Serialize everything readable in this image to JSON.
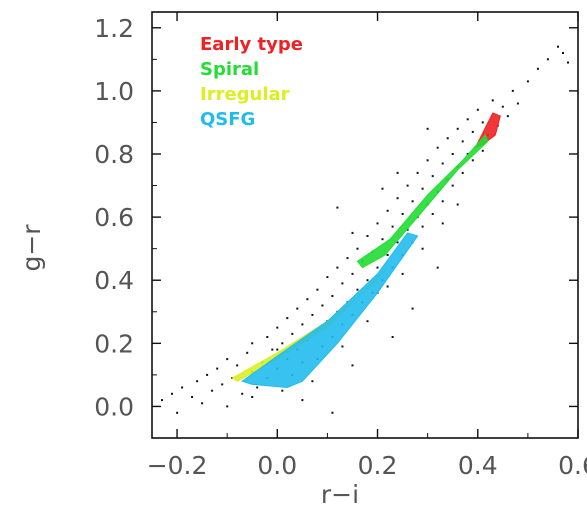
{
  "chart_data": {
    "type": "scatter",
    "xlabel": "r−i",
    "ylabel": "g−r",
    "xlim": [
      -0.25,
      0.6
    ],
    "ylim": [
      -0.1,
      1.25
    ],
    "grid": false,
    "legend_position": "top-left",
    "x_ticks": [
      {
        "value": -0.2,
        "label": "−0.2"
      },
      {
        "value": 0.0,
        "label": "0.0"
      },
      {
        "value": 0.2,
        "label": "0.2"
      },
      {
        "value": 0.4,
        "label": "0.4"
      },
      {
        "value": 0.6,
        "label": "0.6"
      }
    ],
    "y_ticks": [
      {
        "value": 0.0,
        "label": "0.0"
      },
      {
        "value": 0.2,
        "label": "0.2"
      },
      {
        "value": 0.4,
        "label": "0.4"
      },
      {
        "value": 0.6,
        "label": "0.6"
      },
      {
        "value": 0.8,
        "label": "0.8"
      },
      {
        "value": 1.0,
        "label": "1.0"
      },
      {
        "value": 1.2,
        "label": "1.2"
      }
    ],
    "background_points": {
      "color": "#111111",
      "points": [
        [
          -0.23,
          0.02
        ],
        [
          -0.21,
          0.04
        ],
        [
          -0.2,
          -0.02
        ],
        [
          -0.19,
          0.06
        ],
        [
          -0.17,
          0.03
        ],
        [
          -0.16,
          0.08
        ],
        [
          -0.15,
          0.01
        ],
        [
          -0.14,
          0.1
        ],
        [
          -0.13,
          0.05
        ],
        [
          -0.12,
          0.12
        ],
        [
          -0.11,
          0.07
        ],
        [
          -0.1,
          0.0
        ],
        [
          -0.1,
          0.15
        ],
        [
          -0.09,
          0.09
        ],
        [
          -0.08,
          0.13
        ],
        [
          -0.07,
          0.04
        ],
        [
          -0.06,
          0.17
        ],
        [
          -0.05,
          0.11
        ],
        [
          -0.05,
          0.2
        ],
        [
          -0.04,
          0.06
        ],
        [
          -0.03,
          0.14
        ],
        [
          -0.02,
          0.22
        ],
        [
          -0.02,
          0.09
        ],
        [
          -0.01,
          0.18
        ],
        [
          0.0,
          0.12
        ],
        [
          0.0,
          0.25
        ],
        [
          0.01,
          0.05
        ],
        [
          0.01,
          0.2
        ],
        [
          0.02,
          0.15
        ],
        [
          0.02,
          0.28
        ],
        [
          0.03,
          0.1
        ],
        [
          0.03,
          0.23
        ],
        [
          0.04,
          0.18
        ],
        [
          0.04,
          0.31
        ],
        [
          0.05,
          0.14
        ],
        [
          0.05,
          0.26
        ],
        [
          0.06,
          0.21
        ],
        [
          0.06,
          0.34
        ],
        [
          0.07,
          0.08
        ],
        [
          0.07,
          0.29
        ],
        [
          0.08,
          0.24
        ],
        [
          0.08,
          0.37
        ],
        [
          0.09,
          0.19
        ],
        [
          0.09,
          0.32
        ],
        [
          0.1,
          0.27
        ],
        [
          0.1,
          0.41
        ],
        [
          0.11,
          0.22
        ],
        [
          0.11,
          0.35
        ],
        [
          0.12,
          0.3
        ],
        [
          0.12,
          0.44
        ],
        [
          0.13,
          0.26
        ],
        [
          0.13,
          0.39
        ],
        [
          0.14,
          0.33
        ],
        [
          0.14,
          0.47
        ],
        [
          0.15,
          0.29
        ],
        [
          0.15,
          0.42
        ],
        [
          0.16,
          0.37
        ],
        [
          0.16,
          0.5
        ],
        [
          0.17,
          0.33
        ],
        [
          0.17,
          0.46
        ],
        [
          0.18,
          0.4
        ],
        [
          0.18,
          0.54
        ],
        [
          0.19,
          0.36
        ],
        [
          0.19,
          0.49
        ],
        [
          0.2,
          0.44
        ],
        [
          0.2,
          0.58
        ],
        [
          0.21,
          0.4
        ],
        [
          0.21,
          0.53
        ],
        [
          0.22,
          0.48
        ],
        [
          0.22,
          0.62
        ],
        [
          0.23,
          0.44
        ],
        [
          0.23,
          0.57
        ],
        [
          0.24,
          0.52
        ],
        [
          0.24,
          0.66
        ],
        [
          0.25,
          0.48
        ],
        [
          0.25,
          0.61
        ],
        [
          0.26,
          0.56
        ],
        [
          0.26,
          0.7
        ],
        [
          0.27,
          0.52
        ],
        [
          0.27,
          0.65
        ],
        [
          0.28,
          0.6
        ],
        [
          0.28,
          0.74
        ],
        [
          0.29,
          0.57
        ],
        [
          0.29,
          0.69
        ],
        [
          0.3,
          0.64
        ],
        [
          0.3,
          0.78
        ],
        [
          0.31,
          0.61
        ],
        [
          0.31,
          0.73
        ],
        [
          0.32,
          0.68
        ],
        [
          0.32,
          0.82
        ],
        [
          0.33,
          0.65
        ],
        [
          0.33,
          0.77
        ],
        [
          0.34,
          0.72
        ],
        [
          0.34,
          0.85
        ],
        [
          0.35,
          0.7
        ],
        [
          0.35,
          0.8
        ],
        [
          0.36,
          0.76
        ],
        [
          0.36,
          0.88
        ],
        [
          0.37,
          0.74
        ],
        [
          0.37,
          0.84
        ],
        [
          0.38,
          0.8
        ],
        [
          0.38,
          0.91
        ],
        [
          0.39,
          0.78
        ],
        [
          0.39,
          0.87
        ],
        [
          0.4,
          0.83
        ],
        [
          0.4,
          0.94
        ],
        [
          0.41,
          0.81
        ],
        [
          0.41,
          0.9
        ],
        [
          0.42,
          0.86
        ],
        [
          0.43,
          0.97
        ],
        [
          0.44,
          0.89
        ],
        [
          0.45,
          0.95
        ],
        [
          0.46,
          0.92
        ],
        [
          0.47,
          1.0
        ],
        [
          0.48,
          0.96
        ],
        [
          0.5,
          1.03
        ],
        [
          0.52,
          1.07
        ],
        [
          0.54,
          1.1
        ],
        [
          0.56,
          1.14
        ],
        [
          0.57,
          1.12
        ],
        [
          0.58,
          1.09
        ],
        [
          0.2,
          0.36
        ],
        [
          0.22,
          0.38
        ],
        [
          0.25,
          0.42
        ],
        [
          0.13,
          0.19
        ],
        [
          0.08,
          0.15
        ],
        [
          0.18,
          0.27
        ],
        [
          0.29,
          0.5
        ],
        [
          0.33,
          0.58
        ],
        [
          0.36,
          0.64
        ],
        [
          0.0,
          0.18
        ],
        [
          -0.05,
          0.03
        ],
        [
          0.15,
          0.55
        ],
        [
          0.21,
          0.69
        ],
        [
          0.12,
          0.63
        ],
        [
          0.05,
          0.02
        ],
        [
          0.24,
          0.74
        ],
        [
          0.3,
          0.88
        ],
        [
          0.11,
          -0.02
        ],
        [
          0.27,
          0.31
        ],
        [
          0.32,
          0.44
        ],
        [
          0.15,
          0.13
        ],
        [
          0.23,
          0.22
        ]
      ]
    },
    "series": [
      {
        "name": "Early type",
        "color": "#ee2222",
        "shape": "band",
        "polygon": [
          [
            0.395,
            0.82
          ],
          [
            0.43,
            0.93
          ],
          [
            0.445,
            0.92
          ],
          [
            0.435,
            0.86
          ],
          [
            0.41,
            0.83
          ]
        ]
      },
      {
        "name": "Spiral",
        "color": "#22dd33",
        "shape": "band",
        "polygon": [
          [
            0.16,
            0.46
          ],
          [
            0.225,
            0.53
          ],
          [
            0.3,
            0.67
          ],
          [
            0.37,
            0.78
          ],
          [
            0.415,
            0.86
          ],
          [
            0.42,
            0.84
          ],
          [
            0.36,
            0.75
          ],
          [
            0.28,
            0.6
          ],
          [
            0.215,
            0.48
          ],
          [
            0.17,
            0.44
          ]
        ]
      },
      {
        "name": "Irregular",
        "color": "#ddee22",
        "shape": "band",
        "polygon": [
          [
            -0.09,
            0.09
          ],
          [
            0.0,
            0.17
          ],
          [
            0.1,
            0.27
          ],
          [
            0.18,
            0.37
          ],
          [
            0.22,
            0.44
          ],
          [
            0.2,
            0.41
          ],
          [
            0.1,
            0.25
          ],
          [
            0.0,
            0.15
          ],
          [
            -0.08,
            0.08
          ]
        ]
      },
      {
        "name": "QSFG",
        "color": "#22bbee",
        "shape": "band",
        "polygon": [
          [
            -0.07,
            0.08
          ],
          [
            0.0,
            0.16
          ],
          [
            0.1,
            0.27
          ],
          [
            0.2,
            0.42
          ],
          [
            0.26,
            0.55
          ],
          [
            0.28,
            0.54
          ],
          [
            0.2,
            0.36
          ],
          [
            0.12,
            0.2
          ],
          [
            0.05,
            0.08
          ],
          [
            0.02,
            0.06
          ],
          [
            -0.05,
            0.07
          ]
        ]
      }
    ]
  }
}
